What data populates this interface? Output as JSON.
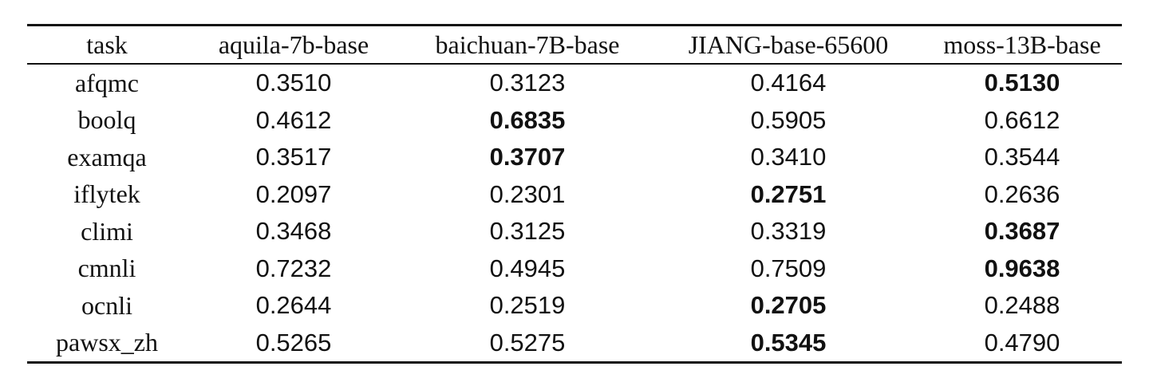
{
  "table": {
    "headers": [
      "task",
      "aquila-7b-base",
      "baichuan-7B-base",
      "JIANG-base-65600",
      "moss-13B-base"
    ],
    "rows": [
      {
        "task": "afqmc",
        "values": [
          "0.3510",
          "0.3123",
          "0.4164",
          "0.5130"
        ],
        "best_index": 3
      },
      {
        "task": "boolq",
        "values": [
          "0.4612",
          "0.6835",
          "0.5905",
          "0.6612"
        ],
        "best_index": 1
      },
      {
        "task": "examqa",
        "values": [
          "0.3517",
          "0.3707",
          "0.3410",
          "0.3544"
        ],
        "best_index": 1
      },
      {
        "task": "iflytek",
        "values": [
          "0.2097",
          "0.2301",
          "0.2751",
          "0.2636"
        ],
        "best_index": 2
      },
      {
        "task": "climi",
        "values": [
          "0.3468",
          "0.3125",
          "0.3319",
          "0.3687"
        ],
        "best_index": 3
      },
      {
        "task": "cmnli",
        "values": [
          "0.7232",
          "0.4945",
          "0.7509",
          "0.9638"
        ],
        "best_index": 3
      },
      {
        "task": "ocnli",
        "values": [
          "0.2644",
          "0.2519",
          "0.2705",
          "0.2488"
        ],
        "best_index": 2
      },
      {
        "task": "pawsx_zh",
        "values": [
          "0.5265",
          "0.5275",
          "0.5345",
          "0.4790"
        ],
        "best_index": 2
      }
    ]
  }
}
